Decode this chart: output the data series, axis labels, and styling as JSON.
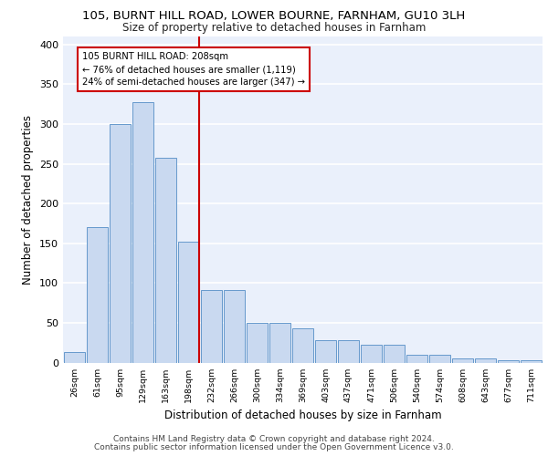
{
  "title1": "105, BURNT HILL ROAD, LOWER BOURNE, FARNHAM, GU10 3LH",
  "title2": "Size of property relative to detached houses in Farnham",
  "xlabel": "Distribution of detached houses by size in Farnham",
  "ylabel": "Number of detached properties",
  "bin_labels": [
    "26sqm",
    "61sqm",
    "95sqm",
    "129sqm",
    "163sqm",
    "198sqm",
    "232sqm",
    "266sqm",
    "300sqm",
    "334sqm",
    "369sqm",
    "403sqm",
    "437sqm",
    "471sqm",
    "506sqm",
    "540sqm",
    "574sqm",
    "608sqm",
    "643sqm",
    "677sqm",
    "711sqm"
  ],
  "bar_heights": [
    13,
    170,
    300,
    328,
    257,
    152,
    91,
    91,
    50,
    50,
    43,
    28,
    28,
    22,
    22,
    10,
    10,
    5,
    5,
    3,
    3
  ],
  "bar_color": "#c9d9f0",
  "bar_edge_color": "#6699cc",
  "vline_color": "#cc0000",
  "annotation_text": "105 BURNT HILL ROAD: 208sqm\n← 76% of detached houses are smaller (1,119)\n24% of semi-detached houses are larger (347) →",
  "annotation_box_color": "#ffffff",
  "annotation_box_edge": "#cc0000",
  "ylim": [
    0,
    410
  ],
  "yticks": [
    0,
    50,
    100,
    150,
    200,
    250,
    300,
    350,
    400
  ],
  "footer1": "Contains HM Land Registry data © Crown copyright and database right 2024.",
  "footer2": "Contains public sector information licensed under the Open Government Licence v3.0.",
  "bg_color": "#eaf0fb",
  "grid_color": "#ffffff"
}
